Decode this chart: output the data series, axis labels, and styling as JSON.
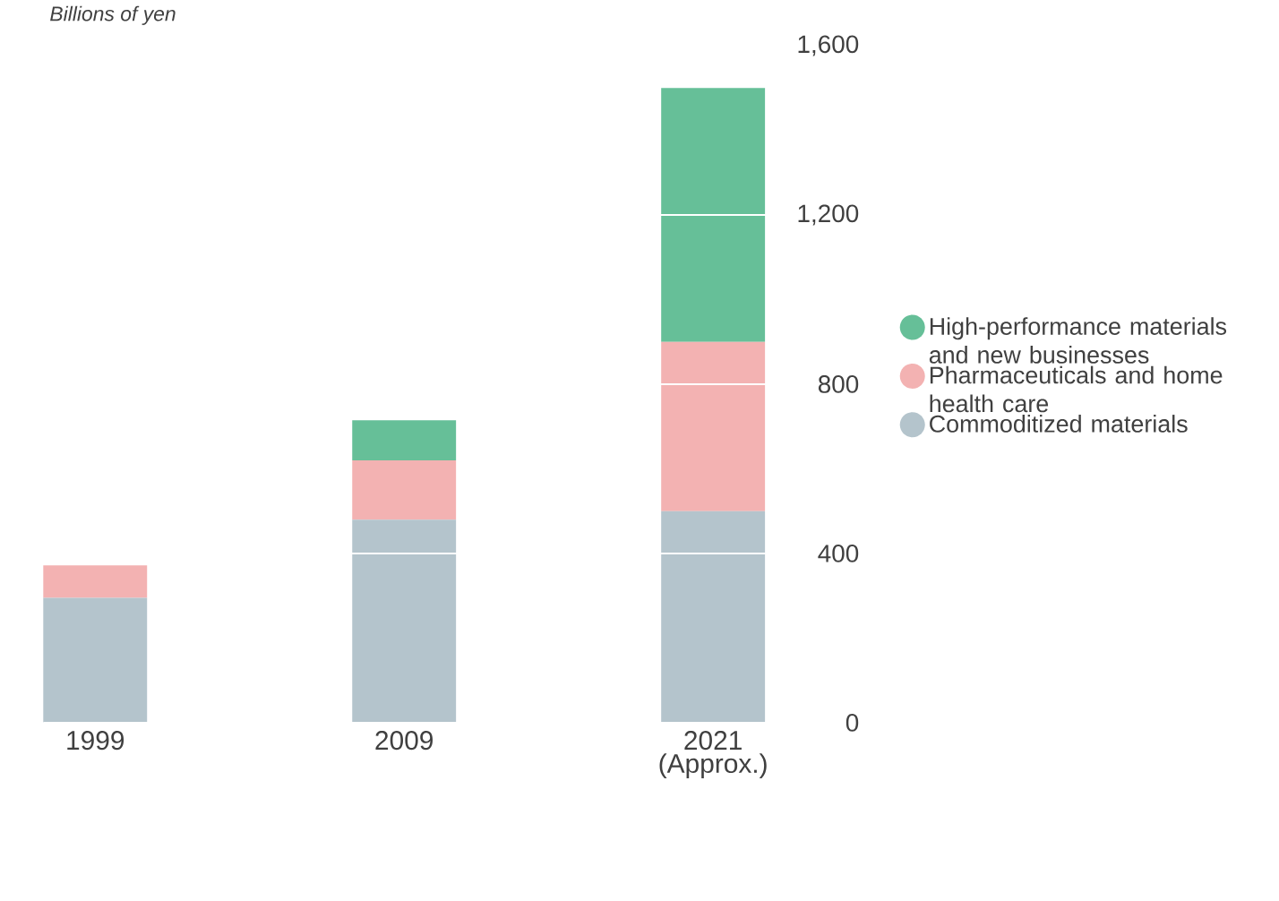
{
  "chart_data": {
    "type": "bar",
    "stacked": true,
    "ylabel": "Billions of yen",
    "categories": [
      "1999",
      "2009",
      "2021 (Approx.)"
    ],
    "series": [
      {
        "name": "Commoditized materials",
        "color": "#b4c4cc",
        "values": [
          295,
          480,
          500
        ]
      },
      {
        "name": "Pharmaceuticals and home health care",
        "color": "#f3b2b2",
        "values": [
          77,
          140,
          400
        ]
      },
      {
        "name": "High-performance materials and new businesses",
        "color": "#66bf98",
        "values": [
          null,
          95,
          600
        ]
      }
    ],
    "ylim": [
      0,
      1600
    ],
    "yticks": [
      0,
      400,
      800,
      {
        "value": 1200,
        "label": "1,200"
      },
      {
        "value": 1600,
        "label": "1,600"
      }
    ],
    "grid": "y",
    "legend": "right"
  }
}
